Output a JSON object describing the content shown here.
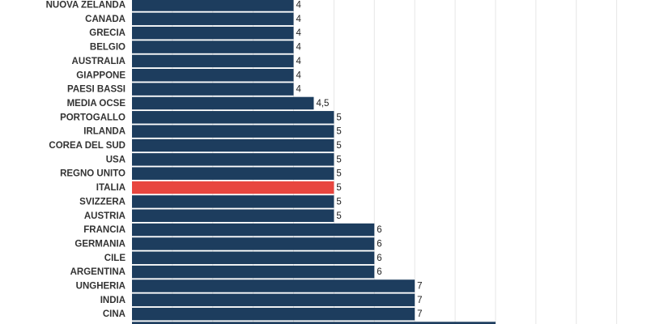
{
  "chart_data": {
    "type": "hbar",
    "categories": [
      "NUOVA ZELANDA",
      "CANADA",
      "GRECIA",
      "BELGIO",
      "AUSTRALIA",
      "GIAPPONE",
      "PAESI BASSI",
      "MEDIA OCSE",
      "PORTOGALLO",
      "IRLANDA",
      "COREA DEL SUD",
      "USA",
      "REGNO UNITO",
      "ITALIA",
      "SVIZZERA",
      "AUSTRIA",
      "FRANCIA",
      "GERMANIA",
      "CILE",
      "ARGENTINA",
      "UNGHERIA",
      "INDIA",
      "CINA",
      null
    ],
    "values": [
      4,
      4,
      4,
      4,
      4,
      4,
      4,
      4.5,
      5,
      5,
      5,
      5,
      5,
      5,
      5,
      5,
      6,
      6,
      6,
      6,
      7,
      7,
      7,
      9
    ],
    "value_labels": [
      "4",
      "4",
      "4",
      "4",
      "4",
      "4",
      "4",
      "4,5",
      "5",
      "5",
      "5",
      "5",
      "5",
      "5",
      "5",
      "5",
      "6",
      "6",
      "6",
      "6",
      "7",
      "7",
      "7",
      null
    ],
    "colors": [
      "#1d3d5e",
      "#1d3d5e",
      "#1d3d5e",
      "#1d3d5e",
      "#1d3d5e",
      "#1d3d5e",
      "#1d3d5e",
      "#1d3d5e",
      "#1d3d5e",
      "#1d3d5e",
      "#1d3d5e",
      "#1d3d5e",
      "#1d3d5e",
      "#e8463f",
      "#1d3d5e",
      "#1d3d5e",
      "#1d3d5e",
      "#1d3d5e",
      "#1d3d5e",
      "#1d3d5e",
      "#1d3d5e",
      "#1d3d5e",
      "#1d3d5e",
      "#1d3d5e"
    ],
    "xlim": [
      0,
      12.75
    ],
    "xticks": [
      1,
      2,
      3,
      4,
      5,
      6,
      7,
      8,
      9,
      10,
      11,
      12
    ],
    "grid": true
  }
}
